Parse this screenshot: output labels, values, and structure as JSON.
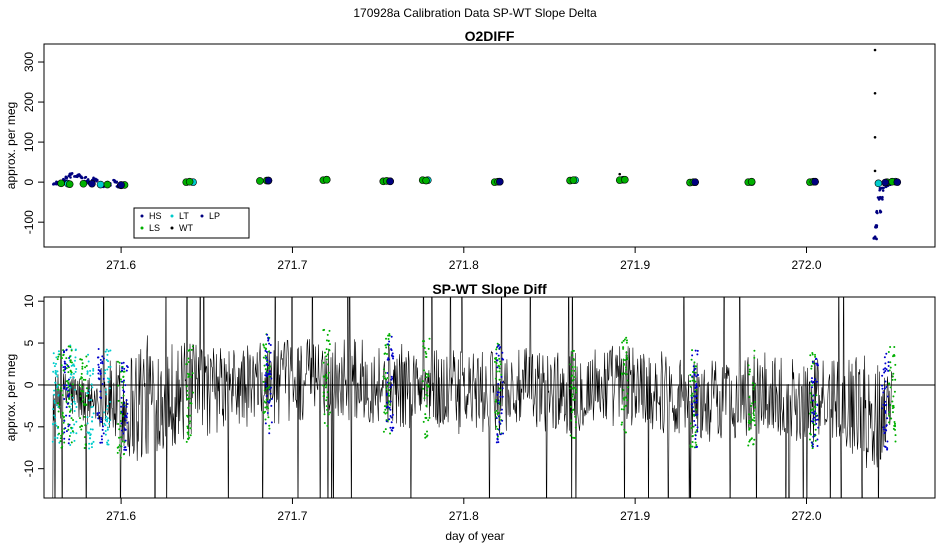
{
  "page": {
    "title": "170928a   Calibration Data SP-WT Slope Delta",
    "x_axis_label": "day of year"
  },
  "chart_data": [
    {
      "type": "scatter",
      "title": "O2DIFF",
      "xlabel": "",
      "ylabel": "approx. per meg",
      "xlim": [
        271.555,
        272.075
      ],
      "ylim": [
        -162,
        345
      ],
      "x_ticks": [
        "271.6",
        "271.7",
        "271.8",
        "271.9",
        "272.0"
      ],
      "x_tick_values": [
        271.6,
        271.7,
        271.8,
        271.9,
        272.0
      ],
      "y_ticks": [
        "-100",
        "0",
        "100",
        "200",
        "300"
      ],
      "y_tick_values": [
        -100,
        0,
        100,
        200,
        300
      ],
      "legend": {
        "placement": "bottom-left",
        "entries": [
          {
            "label": "HS",
            "color": "#000080"
          },
          {
            "label": "LT",
            "color": "#00cccc"
          },
          {
            "label": "LP",
            "color": "#000080"
          },
          {
            "label": "LS",
            "color": "#00b000"
          },
          {
            "label": "WT",
            "color": "#000000"
          }
        ]
      },
      "series": [
        {
          "name": "HS",
          "color": "#000080",
          "x": [
            271.561,
            271.564,
            271.567,
            271.569,
            271.571,
            271.574,
            271.576,
            271.578,
            271.58,
            271.582,
            271.584,
            271.586,
            271.589,
            271.591,
            271.593,
            271.596,
            271.599,
            271.602,
            272.04,
            272.041,
            272.042,
            272.043,
            272.044,
            272.046,
            272.048,
            272.05
          ],
          "y": [
            -2,
            -4,
            5,
            12,
            18,
            15,
            20,
            10,
            5,
            -5,
            8,
            6,
            -8,
            -3,
            -6,
            2,
            -9,
            -5,
            -140,
            -110,
            -75,
            -40,
            -18,
            -8,
            -5,
            -2
          ]
        },
        {
          "name": "LT",
          "color": "#00cccc",
          "x": [
            271.569,
            271.588,
            271.6,
            271.642,
            271.686,
            271.72,
            271.757,
            271.779,
            271.821,
            271.865,
            271.893,
            271.935,
            271.968,
            272.005,
            272.042,
            272.052
          ],
          "y": [
            -4,
            -6,
            -8,
            0,
            4,
            6,
            2,
            5,
            1,
            5,
            6,
            0,
            0,
            1,
            -3,
            1
          ]
        },
        {
          "name": "LS",
          "color": "#00b000",
          "x": [
            271.565,
            271.57,
            271.578,
            271.592,
            271.602,
            271.638,
            271.64,
            271.681,
            271.685,
            271.718,
            271.72,
            271.753,
            271.755,
            271.776,
            271.778,
            271.818,
            271.82,
            271.862,
            271.864,
            271.891,
            271.894,
            271.932,
            271.934,
            271.966,
            271.968,
            272.002,
            272.004,
            272.047,
            272.05
          ],
          "y": [
            -3,
            -5,
            -4,
            -6,
            -7,
            0,
            1,
            3,
            4,
            5,
            6,
            2,
            3,
            5,
            4,
            0,
            1,
            4,
            5,
            5,
            6,
            -1,
            0,
            0,
            1,
            0,
            1,
            0,
            1
          ]
        },
        {
          "name": "WT",
          "color": "#000000",
          "x": [
            271.891,
            272.04,
            272.04,
            272.04,
            272.04
          ],
          "y": [
            20,
            330,
            222,
            112,
            28
          ]
        },
        {
          "name": "LP",
          "color": "#000080",
          "x": [
            271.583,
            271.6,
            271.686,
            271.757,
            271.821,
            271.935,
            272.005,
            272.046,
            272.053
          ],
          "y": [
            -4,
            -7,
            4,
            2,
            1,
            0,
            1,
            -1,
            0
          ]
        }
      ]
    },
    {
      "type": "line",
      "title": "SP-WT Slope Diff",
      "xlabel": "day of year",
      "ylabel": "approx. per meg",
      "xlim": [
        271.555,
        272.075
      ],
      "ylim": [
        -13.5,
        10.5
      ],
      "x_ticks": [
        "271.6",
        "271.7",
        "271.8",
        "271.9",
        "272.0"
      ],
      "x_tick_values": [
        271.6,
        271.7,
        271.8,
        271.9,
        272.0
      ],
      "y_ticks": [
        "-10",
        "-5",
        "0",
        "5",
        "10"
      ],
      "y_tick_values": [
        -10,
        -5,
        0,
        5,
        10
      ],
      "reference_line_y": 0,
      "series": [
        {
          "color": "#000000",
          "x": [
            271.56,
            271.57,
            271.58,
            271.59,
            271.6,
            271.61,
            271.62,
            271.64,
            271.66,
            271.68,
            271.7,
            271.72,
            271.74,
            271.76,
            271.78,
            271.8,
            271.82,
            271.84,
            271.86,
            271.88,
            271.9,
            271.92,
            271.94,
            271.96,
            271.98,
            272.0,
            272.02,
            272.04,
            272.05
          ],
          "y": [
            -2,
            -1,
            -2,
            -1,
            -3,
            -2,
            -1,
            -1,
            -0.5,
            0,
            0.5,
            1,
            0.5,
            0,
            -0.5,
            -1,
            -1,
            -0.5,
            -1,
            0,
            0,
            -1,
            -2,
            -1.5,
            -1,
            -2,
            -1.5,
            -4,
            -1
          ],
          "spread": [
            3,
            3,
            3,
            4,
            6,
            8,
            7,
            6,
            5,
            5,
            5,
            5,
            5,
            5,
            5,
            5,
            5,
            5,
            5,
            5,
            5,
            5,
            5,
            5,
            5,
            5,
            5,
            8,
            3
          ]
        }
      ],
      "calibration_bands": [
        {
          "color": "#00cccc",
          "x": [
            271.562,
            271.572,
            271.582,
            271.592
          ]
        },
        {
          "color": "#00b000",
          "x": [
            271.565,
            271.57,
            271.578,
            271.6,
            271.64,
            271.685,
            271.72,
            271.755,
            271.778,
            271.82,
            271.864,
            271.894,
            271.934,
            271.968,
            272.004,
            272.05
          ]
        },
        {
          "color": "#0000cc",
          "x": [
            271.568,
            271.588,
            271.602,
            271.686,
            271.757,
            271.821,
            271.935,
            272.005,
            272.046
          ]
        }
      ]
    }
  ]
}
